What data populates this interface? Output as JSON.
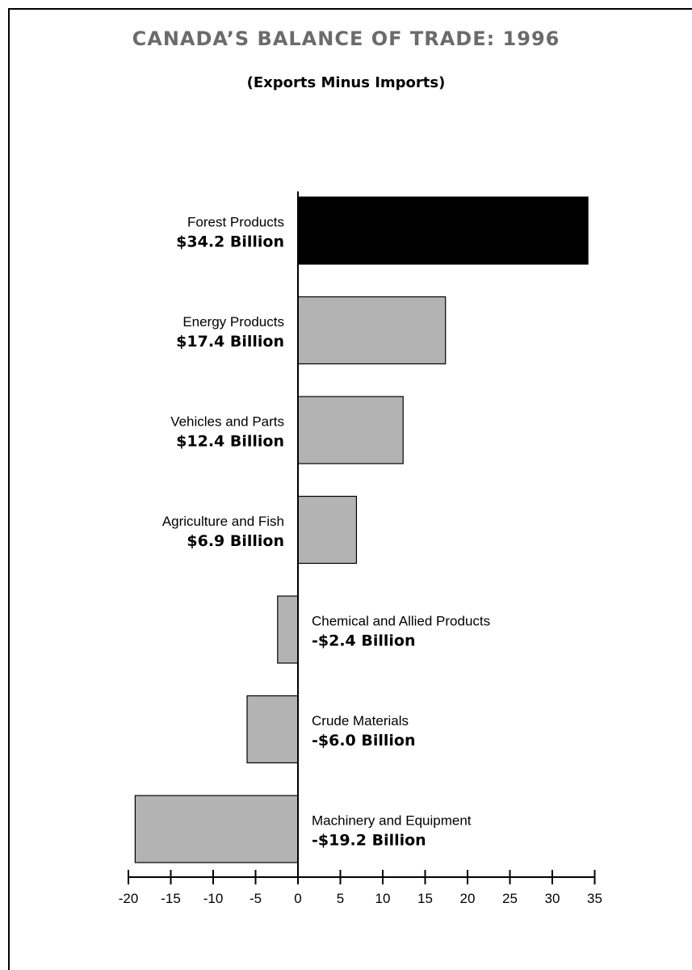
{
  "title": "CANADA’S BALANCE OF TRADE:  1996",
  "subtitle": "(Exports Minus Imports)",
  "colors": {
    "highlight": "#000000",
    "bar": "#b3b3b3",
    "title": "#6b6b6b"
  },
  "chart_data": {
    "type": "bar",
    "orientation": "horizontal",
    "title": "CANADA’S BALANCE OF TRADE:  1996",
    "subtitle": "(Exports Minus Imports)",
    "xlim": [
      -20,
      35
    ],
    "xticks": [
      -20,
      -15,
      -10,
      -5,
      0,
      5,
      10,
      15,
      20,
      25,
      30,
      35
    ],
    "categories": [
      "Forest Products",
      "Energy Products",
      "Vehicles and Parts",
      "Agriculture and Fish",
      "Chemical and Allied Products",
      "Crude Materials",
      "Machinery and Equipment"
    ],
    "values": [
      34.2,
      17.4,
      12.4,
      6.9,
      -2.4,
      -6.0,
      -19.2
    ],
    "value_labels": [
      "$34.2 Billion",
      "$17.4 Billion",
      "$12.4 Billion",
      "$6.9 Billion",
      "-$2.4 Billion",
      "-$6.0 Billion",
      "-$19.2 Billion"
    ],
    "highlight_index": 0
  }
}
